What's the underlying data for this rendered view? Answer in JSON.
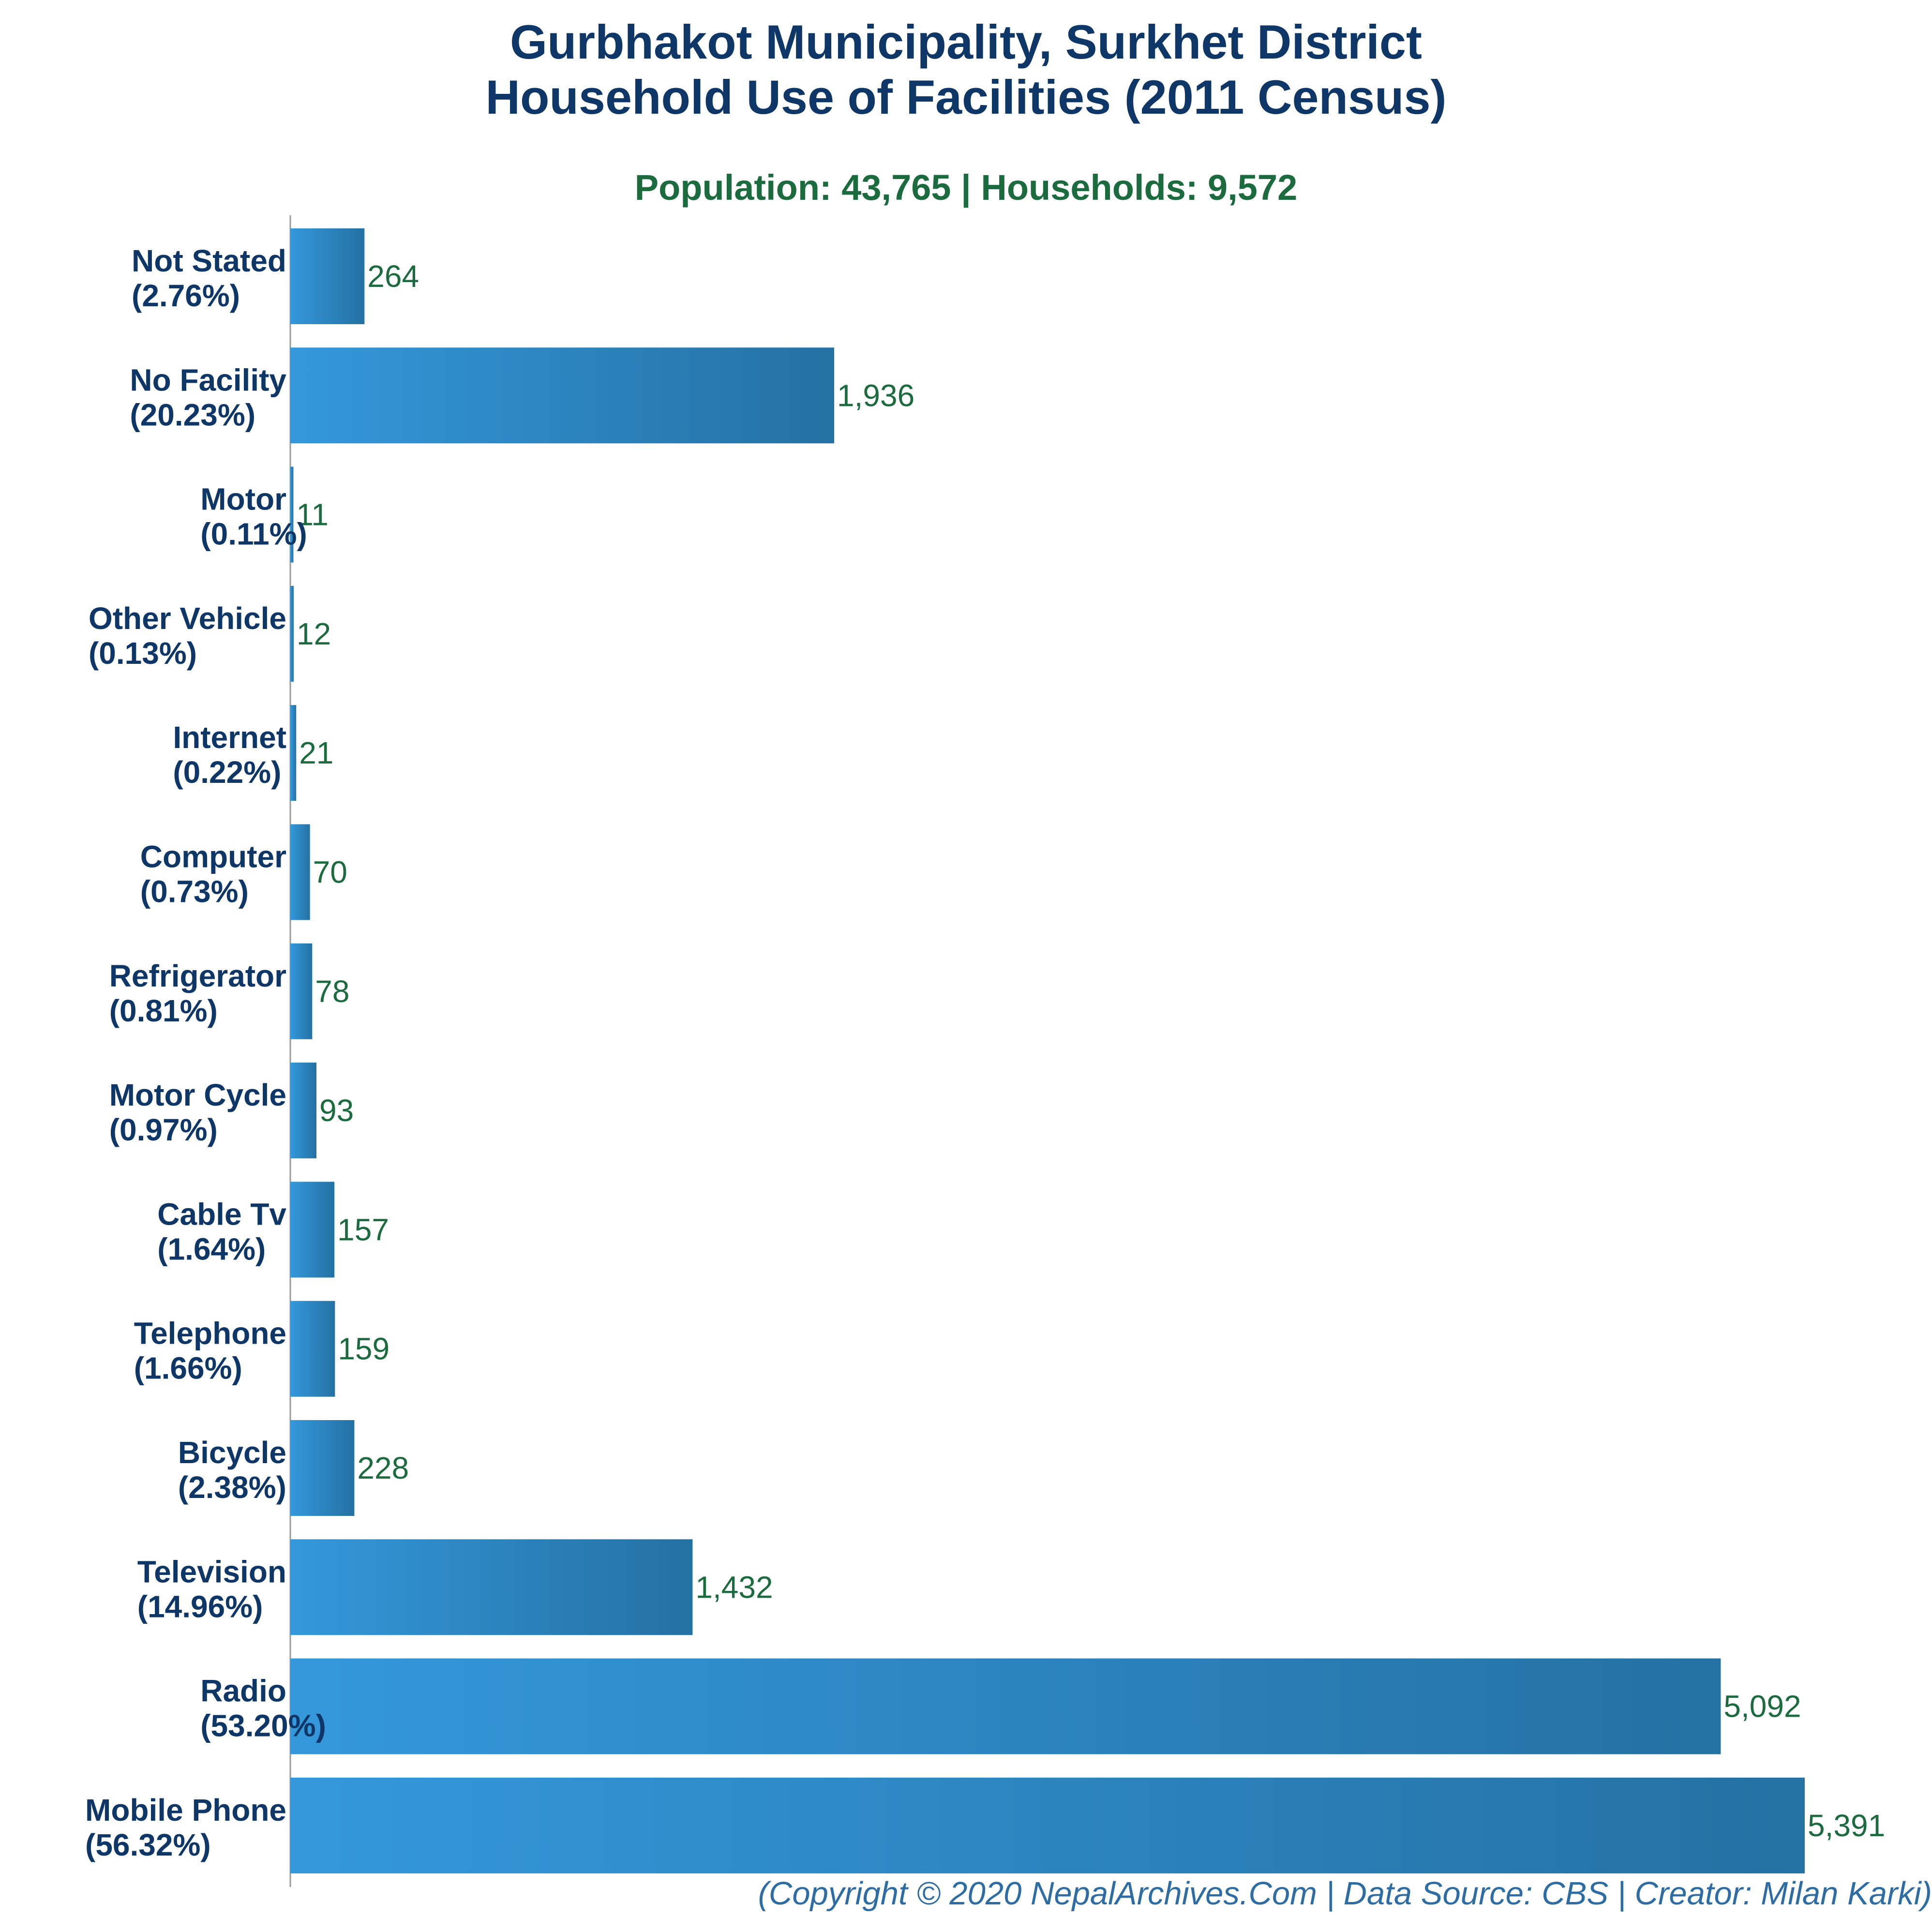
{
  "header": {
    "title_line1": "Gurbhakot Municipality, Surkhet District",
    "title_line2": "Household Use of Facilities (2011 Census)",
    "subtitle": "Population: 43,765 | Households: 9,572",
    "footer": "(Copyright © 2020 NepalArchives.Com | Data Source: CBS | Creator: Milan Karki)"
  },
  "colors": {
    "bar_light": "#3498db",
    "bar_dark": "#2471a3",
    "title": "#0e3767",
    "value_text": "#1b6b3f",
    "footer_text": "#2e6da4",
    "axis": "#999999"
  },
  "chart_data": {
    "type": "bar",
    "orientation": "horizontal",
    "title": "Gurbhakot Municipality, Surkhet District Household Use of Facilities (2011 Census)",
    "subtitle": "Population: 43,765 | Households: 9,572",
    "grid": false,
    "xlim": [
      0,
      5391
    ],
    "categories": [
      "Not Stated",
      "No Facility",
      "Motor",
      "Other Vehicle",
      "Internet",
      "Computer",
      "Refrigerator",
      "Motor Cycle",
      "Cable Tv",
      "Telephone",
      "Bicycle",
      "Television",
      "Radio",
      "Mobile Phone"
    ],
    "percent_labels": [
      "(2.76%)",
      "(20.23%)",
      "(0.11%)",
      "(0.13%)",
      "(0.22%)",
      "(0.73%)",
      "(0.81%)",
      "(0.97%)",
      "(1.64%)",
      "(1.66%)",
      "(2.38%)",
      "(14.96%)",
      "(53.20%)",
      "(56.32%)"
    ],
    "values": [
      264,
      1936,
      11,
      12,
      21,
      70,
      78,
      93,
      157,
      159,
      228,
      1432,
      5092,
      5391
    ],
    "value_labels": [
      "264",
      "1,936",
      "11",
      "12",
      "21",
      "70",
      "78",
      "93",
      "157",
      "159",
      "228",
      "1,432",
      "5,092",
      "5,391"
    ]
  }
}
